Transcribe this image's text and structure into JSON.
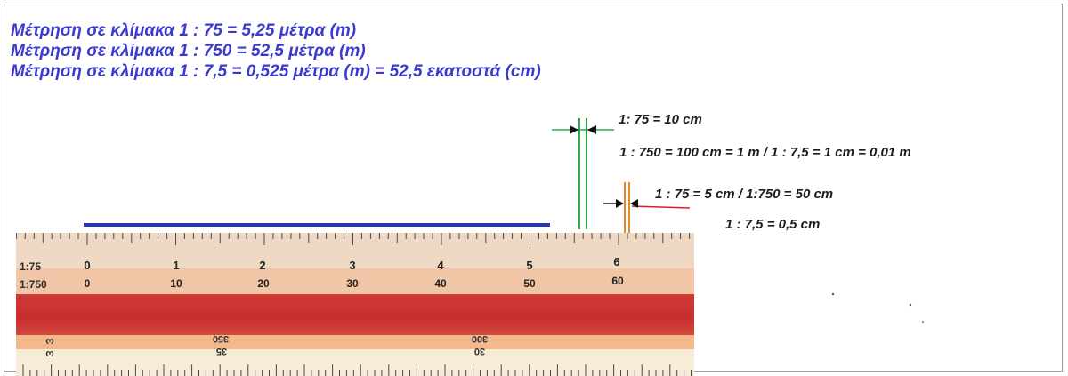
{
  "header_lines": [
    "Μέτρηση σε κλίμακα 1 : 75 = 5,25 μέτρα (m)",
    "Μέτρηση σε κλίμακα 1 : 750 = 52,5 μέτρα (m)",
    "Μέτρηση σε κλίμακα 1 : 7,5 = 0,525 μέτρα (m)  = 52,5 εκατοστά (cm)"
  ],
  "annotations": {
    "a1": "1: 75 = 10 cm",
    "a2": "1 : 750 = 100 cm = 1 m  /  1 : 7,5 = 1 cm = 0,01 m",
    "a3": "1 : 75 = 5 cm   /   1:750 = 50 cm",
    "a4": "1 : 7,5 = 0,5 cm"
  },
  "ruler": {
    "scale_labels": [
      "1:75",
      "1:750"
    ],
    "scale_75": [
      "0",
      "1",
      "2",
      "3",
      "4",
      "5",
      "6"
    ],
    "scale_750": [
      "0",
      "10",
      "20",
      "30",
      "40",
      "50",
      "60"
    ],
    "lower_flipped": [
      {
        "text": "ω"
      },
      {
        "text": "ω"
      },
      {
        "text": "350"
      },
      {
        "text": "35"
      },
      {
        "text": "300"
      },
      {
        "text": "30"
      }
    ]
  },
  "colors": {
    "header_text": "#3a3ad0",
    "measure_line": "#2a36b8",
    "marker_green": "#2aa84a",
    "marker_orange": "#e08a2a",
    "marker_red": "#d82020",
    "ruler_red": "#c8302e"
  }
}
